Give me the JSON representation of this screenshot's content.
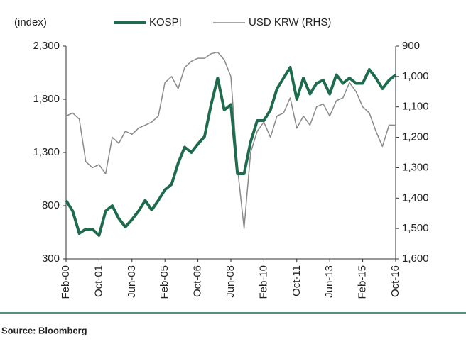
{
  "chart_data": {
    "type": "line",
    "y_axis_label": "(index)",
    "source": "Source: Bloomberg",
    "categories": [
      "Feb-00",
      null,
      null,
      null,
      null,
      "Oct-01",
      null,
      null,
      null,
      null,
      "Jun-03",
      null,
      null,
      null,
      null,
      "Feb-05",
      null,
      null,
      null,
      null,
      "Oct-06",
      null,
      null,
      null,
      null,
      "Jun-08",
      null,
      null,
      null,
      null,
      "Feb-10",
      null,
      null,
      null,
      null,
      "Oct-11",
      null,
      null,
      null,
      null,
      "Jun-13",
      null,
      null,
      null,
      null,
      "Feb-15",
      null,
      null,
      null,
      null,
      "Oct-16"
    ],
    "series": [
      {
        "name": "KOSPI",
        "color": "#1f6b4e",
        "axis": "y",
        "values": [
          850,
          750,
          540,
          580,
          580,
          520,
          750,
          800,
          680,
          600,
          670,
          750,
          850,
          760,
          850,
          950,
          1000,
          1200,
          1350,
          1300,
          1380,
          1450,
          1750,
          2000,
          1700,
          1750,
          1100,
          1100,
          1400,
          1600,
          1600,
          1700,
          1900,
          2000,
          2100,
          1800,
          2000,
          1850,
          1950,
          1980,
          1850,
          2030,
          1950,
          2000,
          1950,
          1950,
          2080,
          2000,
          1900,
          1980,
          2030
        ]
      },
      {
        "name": "USD KRW (RHS)",
        "color": "#8a8a8a",
        "axis": "y2",
        "values": [
          1130,
          1120,
          1140,
          1280,
          1300,
          1290,
          1320,
          1200,
          1220,
          1180,
          1190,
          1170,
          1160,
          1150,
          1130,
          1020,
          1000,
          1040,
          970,
          950,
          940,
          940,
          925,
          920,
          945,
          1000,
          1300,
          1500,
          1250,
          1180,
          1150,
          1200,
          1130,
          1120,
          1070,
          1170,
          1130,
          1160,
          1100,
          1090,
          1130,
          1080,
          1070,
          1020,
          1050,
          1100,
          1120,
          1180,
          1230,
          1160,
          1160
        ]
      }
    ],
    "ylim": [
      300,
      2300
    ],
    "yticks": [
      300,
      800,
      {
        "value": 1300,
        "label": "1,300"
      },
      {
        "value": 1800,
        "label": "1,800"
      },
      {
        "value": 2300,
        "label": "2,300"
      }
    ],
    "y2lim": [
      1600,
      900
    ],
    "y2ticks": [
      900,
      {
        "value": 1000,
        "label": "1,000"
      },
      {
        "value": 1100,
        "label": "1,100"
      },
      {
        "value": 1200,
        "label": "1,200"
      },
      {
        "value": 1300,
        "label": "1,300"
      },
      {
        "value": 1400,
        "label": "1,400"
      },
      {
        "value": 1500,
        "label": "1,500"
      },
      {
        "value": 1600,
        "label": "1,600"
      }
    ],
    "legend": "top",
    "grid": false
  }
}
